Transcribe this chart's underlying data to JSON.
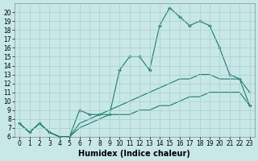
{
  "xlabel": "Humidex (Indice chaleur)",
  "background_color": "#c8e8e8",
  "line_color": "#1a7a6a",
  "xlim_min": -0.5,
  "xlim_max": 23.5,
  "ylim_min": 6,
  "ylim_max": 21,
  "xticks": [
    0,
    1,
    2,
    3,
    4,
    5,
    6,
    7,
    8,
    9,
    10,
    11,
    12,
    13,
    14,
    15,
    16,
    17,
    18,
    19,
    20,
    21,
    22,
    23
  ],
  "yticks": [
    6,
    7,
    8,
    9,
    10,
    11,
    12,
    13,
    14,
    15,
    16,
    17,
    18,
    19,
    20
  ],
  "grid_color": "#aacccc",
  "label_fontsize": 7,
  "tick_fontsize": 5.5,
  "series_main_x": [
    0,
    1,
    2,
    3,
    4,
    5,
    6,
    7,
    8,
    9,
    10,
    11,
    12,
    13,
    14,
    15,
    16,
    17,
    18,
    19,
    20,
    21,
    22,
    23
  ],
  "series_main_y": [
    7.5,
    6.5,
    7.5,
    6.5,
    6.0,
    6.0,
    9.0,
    8.5,
    8.5,
    8.5,
    13.5,
    15.0,
    15.0,
    13.5,
    18.5,
    20.5,
    19.5,
    18.5,
    19.0,
    18.5,
    16.0,
    13.0,
    12.5,
    9.5
  ],
  "series_mid_x": [
    0,
    1,
    2,
    3,
    4,
    5,
    6,
    7,
    8,
    9,
    10,
    11,
    12,
    13,
    14,
    15,
    16,
    17,
    18,
    19,
    20,
    21,
    22,
    23
  ],
  "series_mid_y": [
    7.5,
    6.5,
    7.5,
    6.5,
    6.0,
    6.0,
    7.5,
    8.0,
    8.5,
    9.0,
    9.5,
    10.0,
    10.5,
    11.0,
    11.5,
    12.0,
    12.5,
    12.5,
    13.0,
    13.0,
    12.5,
    12.5,
    12.5,
    11.0
  ],
  "series_low_x": [
    0,
    1,
    2,
    3,
    4,
    5,
    6,
    7,
    8,
    9,
    10,
    11,
    12,
    13,
    14,
    15,
    16,
    17,
    18,
    19,
    20,
    21,
    22,
    23
  ],
  "series_low_y": [
    7.5,
    6.5,
    7.5,
    6.5,
    6.0,
    6.0,
    7.0,
    7.5,
    8.0,
    8.5,
    8.5,
    8.5,
    9.0,
    9.0,
    9.5,
    9.5,
    10.0,
    10.5,
    10.5,
    11.0,
    11.0,
    11.0,
    11.0,
    9.5
  ]
}
